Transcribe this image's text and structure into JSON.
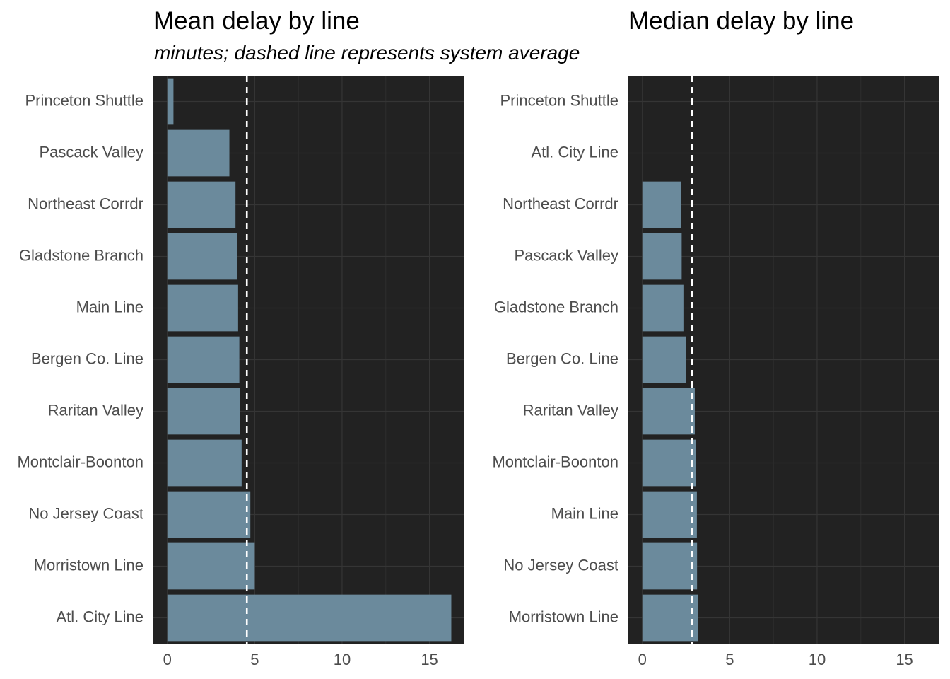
{
  "chart_data": [
    {
      "type": "bar",
      "orientation": "horizontal",
      "title": "Mean delay by line",
      "subtitle": "minutes; dashed line represents system average",
      "categories": [
        "Princeton Shuttle",
        "Pascack Valley",
        "Northeast Corrdr",
        "Gladstone Branch",
        "Main Line",
        "Bergen Co. Line ",
        "Raritan Valley",
        "Montclair-Boonton",
        "No Jersey Coast",
        "Morristown Line",
        "Atl. City Line"
      ],
      "values": [
        0.35,
        3.55,
        3.9,
        3.98,
        4.05,
        4.12,
        4.15,
        4.25,
        4.75,
        5.0,
        16.25
      ],
      "reference_line": {
        "value": 4.55,
        "style": "dashed",
        "label": "system average"
      },
      "xlim": [
        -0.8,
        17
      ],
      "xticks": [
        0,
        5,
        10,
        15
      ],
      "grid": true,
      "bar_color": "#6b8a9c",
      "background_color": "#222222",
      "reference_color": "#ffffff"
    },
    {
      "type": "bar",
      "orientation": "horizontal",
      "title": "Median delay by line",
      "categories": [
        "Princeton Shuttle",
        "Atl. City Line",
        "Northeast Corrdr",
        "Pascack Valley",
        "Gladstone Branch",
        "Bergen Co. Line ",
        "Raritan Valley",
        "Montclair-Boonton",
        "Main Line",
        "No Jersey Coast",
        "Morristown Line"
      ],
      "values": [
        0,
        0,
        2.2,
        2.25,
        2.35,
        2.5,
        3.0,
        3.08,
        3.12,
        3.13,
        3.17
      ],
      "reference_line": {
        "value": 2.85,
        "style": "dashed",
        "label": "system average"
      },
      "xlim": [
        -0.8,
        17
      ],
      "xticks": [
        0,
        5,
        10,
        15
      ],
      "grid": true,
      "bar_color": "#6b8a9c",
      "background_color": "#222222",
      "reference_color": "#ffffff"
    }
  ]
}
